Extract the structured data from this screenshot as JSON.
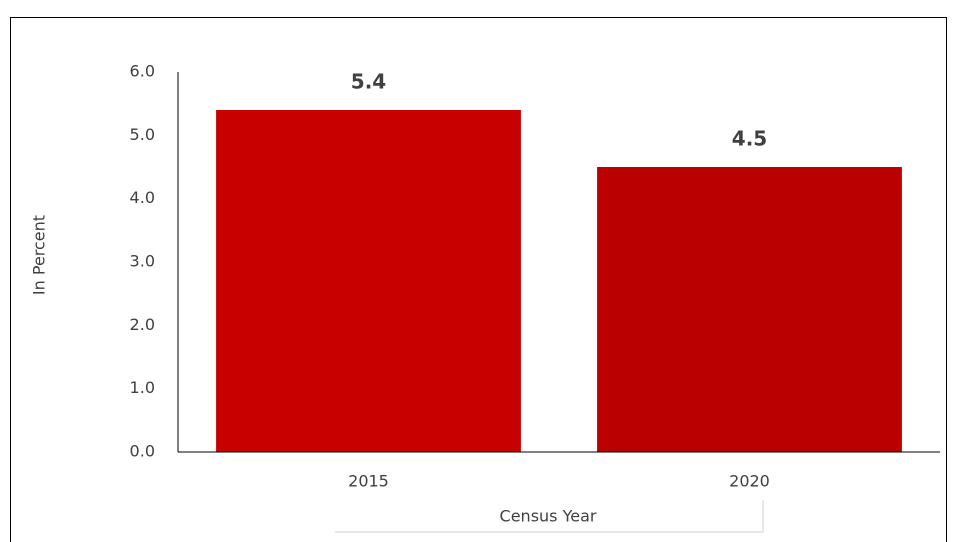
{
  "chart_data": {
    "type": "bar",
    "categories": [
      "2015",
      "2020"
    ],
    "values": [
      5.4,
      4.5
    ],
    "colors": [
      "#c80000",
      "#bb0000"
    ],
    "xlabel": "Census Year",
    "ylabel": "In Percent",
    "ylim": [
      0,
      6
    ],
    "yticks": [
      {
        "value": 0,
        "label": "0.0"
      },
      {
        "value": 1,
        "label": "1.0"
      },
      {
        "value": 2,
        "label": "2.0"
      },
      {
        "value": 3,
        "label": "3.0"
      },
      {
        "value": 4,
        "label": "4.0"
      },
      {
        "value": 5,
        "label": "5.0"
      },
      {
        "value": 6,
        "label": "6.0"
      }
    ],
    "grid": false
  }
}
